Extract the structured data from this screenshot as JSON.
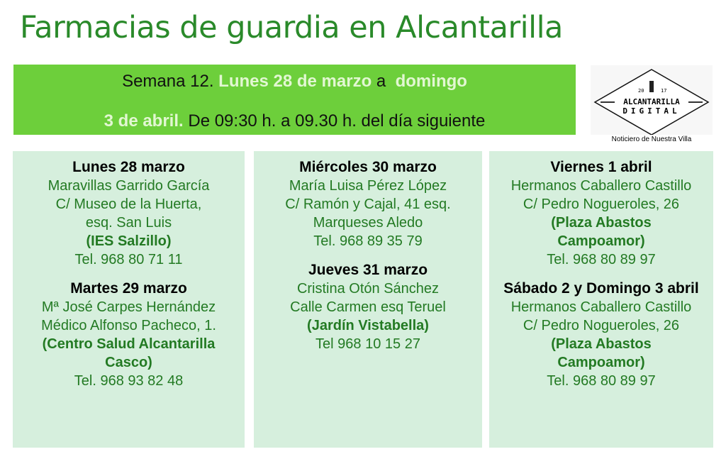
{
  "title": "Farmacias de guardia en Alcantarilla",
  "banner": {
    "p1": "Semana 12. ",
    "p2": "Lunes 28 de marzo",
    "p3": " a  ",
    "p4": "domingo",
    "p5": "3 de abril",
    "p6": ".",
    "p7": " De 09:30 h. a 09.30 h. del día siguiente"
  },
  "logo": {
    "year_left": "20",
    "year_right": "17",
    "line1": "ALCANTARILLA",
    "line2": "DIGITAL",
    "caption": "Noticiero de Nuestra Villa"
  },
  "colors": {
    "title": "#2a8a2a",
    "banner": "#6dcf3b",
    "card": "#d6efdd",
    "text": "#237a23"
  },
  "columns": [
    [
      {
        "day": "Lunes 28 marzo",
        "lines": [
          {
            "t": "Maravillas Garrido García"
          },
          {
            "t": "C/ Museo de la Huerta,"
          },
          {
            "t": "esq. San Luis"
          },
          {
            "t": "(IES Salzillo)",
            "bold": true
          },
          {
            "t": "Tel. 968 80 71 11"
          }
        ]
      },
      {
        "day": "Martes 29 marzo",
        "lines": [
          {
            "t": "Mª José Carpes Hernández"
          },
          {
            "t": "Médico Alfonso Pacheco, 1."
          },
          {
            "t": "(Centro Salud Alcantarilla",
            "bold": true
          },
          {
            "t": "Casco)",
            "bold": true
          },
          {
            "t": "Tel. 968 93 82 48"
          }
        ]
      }
    ],
    [
      {
        "day": "Miércoles 30 marzo",
        "lines": [
          {
            "t": "María Luisa Pérez López"
          },
          {
            "t": "C/ Ramón y Cajal, 41 esq."
          },
          {
            "t": "Marqueses Aledo"
          },
          {
            "t": "Tel. 968 89 35 79"
          }
        ]
      },
      {
        "day": "Jueves 31 marzo",
        "lines": [
          {
            "t": "Cristina Otón Sánchez"
          },
          {
            "t": "Calle Carmen esq Teruel"
          },
          {
            "t": "(Jardín Vistabella)",
            "bold": true
          },
          {
            "t": "Tel 968 10 15 27"
          }
        ]
      }
    ],
    [
      {
        "day": "Viernes 1 abril",
        "lines": [
          {
            "t": "Hermanos Caballero Castillo"
          },
          {
            "t": "C/ Pedro Nogueroles, 26"
          },
          {
            "t": "(Plaza Abastos",
            "bold": true
          },
          {
            "t": "Campoamor)",
            "bold": true
          },
          {
            "t": "Tel. 968 80 89 97"
          }
        ]
      },
      {
        "day": "Sábado 2 y Domingo 3 abril",
        "lines": [
          {
            "t": "Hermanos Caballero Castillo"
          },
          {
            "t": "C/ Pedro Nogueroles, 26"
          },
          {
            "t": "(Plaza Abastos",
            "bold": true
          },
          {
            "t": "Campoamor)",
            "bold": true
          },
          {
            "t": "Tel. 968 80 89 97"
          }
        ]
      }
    ]
  ]
}
